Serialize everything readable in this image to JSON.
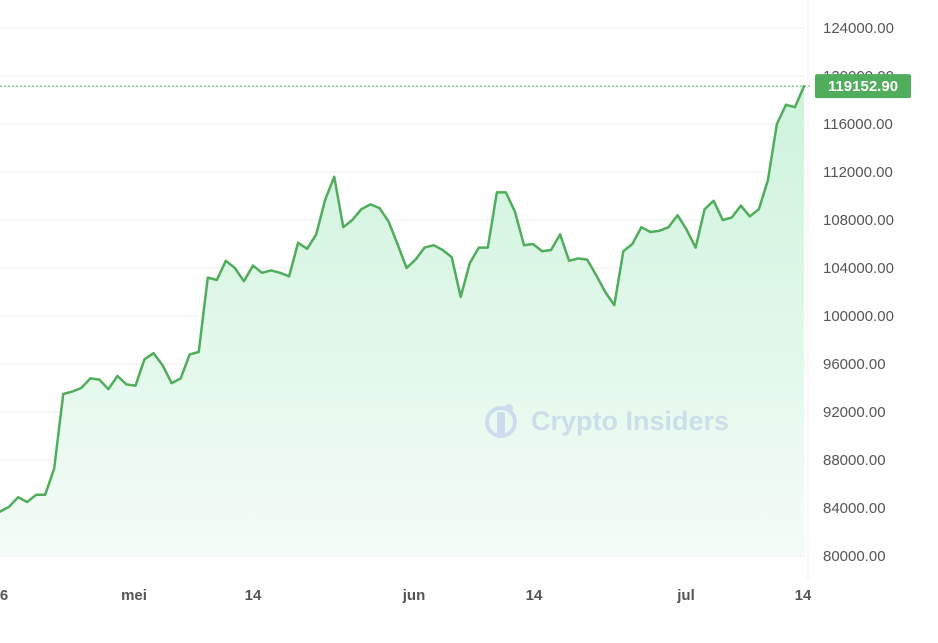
{
  "chart_data": {
    "type": "area",
    "title": "",
    "xlabel": "",
    "ylabel": "",
    "ylim": [
      80000,
      125000
    ],
    "grid": true,
    "x_tick_labels": [
      "6",
      "mei",
      "14",
      "jun",
      "14",
      "jul",
      "14"
    ],
    "y_tick_labels": [
      "80000.00",
      "84000.00",
      "88000.00",
      "92000.00",
      "96000.00",
      "100000.00",
      "104000.00",
      "108000.00",
      "112000.00",
      "116000.00",
      "120000.00",
      "124000.00"
    ],
    "y_ticks": [
      80000,
      84000,
      88000,
      92000,
      96000,
      100000,
      104000,
      108000,
      112000,
      116000,
      120000,
      124000
    ],
    "current_price": 119152.9,
    "current_price_label": "119152.90",
    "series": [
      {
        "values": [
          83700,
          84100,
          84900,
          84500,
          85100,
          85100,
          87300,
          93500,
          93700,
          94000,
          94800,
          94700,
          93900,
          95000,
          94300,
          94200,
          96400,
          96900,
          95900,
          94400,
          94800,
          96800,
          97000,
          103200,
          103000,
          104600,
          104000,
          102900,
          104200,
          103600,
          103800,
          103600,
          103300,
          106100,
          105600,
          106800,
          109700,
          111600,
          107400,
          108000,
          108900,
          109300,
          109000,
          107900,
          106000,
          104000,
          104700,
          105700,
          105900,
          105500,
          104900,
          101600,
          104400,
          105700,
          105700,
          110300,
          110300,
          108700,
          105900,
          106000,
          105400,
          105500,
          106800,
          104600,
          104800,
          104700,
          103400,
          102000,
          100900,
          105400,
          106000,
          107400,
          107000,
          107100,
          107400,
          108400,
          107200,
          105700,
          108900,
          109600,
          108000,
          108200,
          109200,
          108300,
          108900,
          111300,
          116000,
          117600,
          117400,
          119152.9
        ]
      }
    ]
  },
  "colors": {
    "line": "#4fad5b",
    "area_top": "#cdf3dc",
    "area_bottom": "#f4fcf7",
    "grid": "#eeeeee",
    "price_label_bg": "#4fad5b",
    "watermark": "#b9cbe6"
  },
  "watermark": {
    "text": "Crypto Insiders",
    "icon": "crypto-insiders-logo-icon"
  }
}
